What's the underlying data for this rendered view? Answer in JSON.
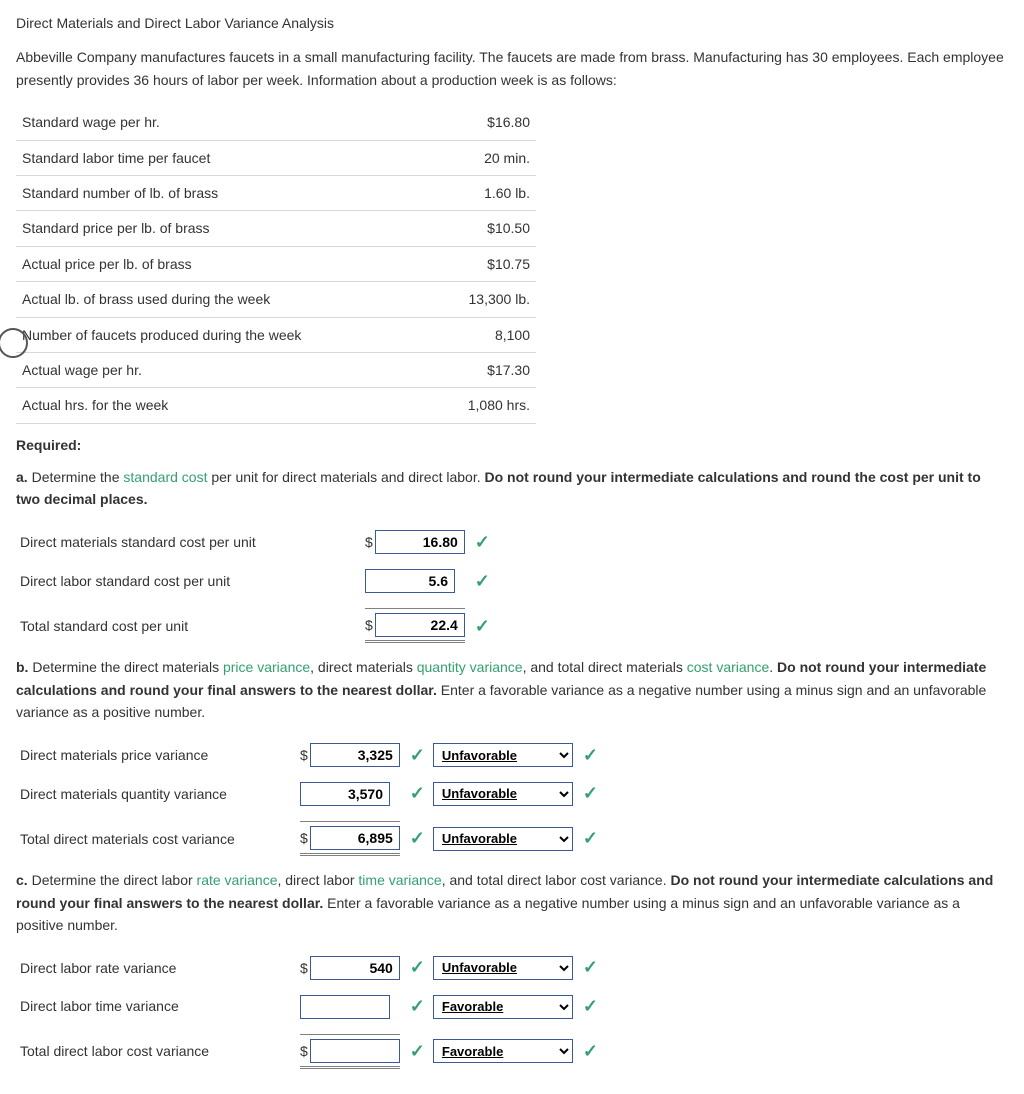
{
  "title": "Direct Materials and Direct Labor Variance Analysis",
  "intro": "Abbeville Company manufactures faucets in a small manufacturing facility. The faucets are made from brass. Manufacturing has 30 employees. Each employee presently provides 36 hours of labor per week. Information about a production week is as follows:",
  "info_rows": [
    {
      "label": "Standard wage per hr.",
      "value": "$16.80"
    },
    {
      "label": "Standard labor time per faucet",
      "value": "20 min."
    },
    {
      "label": "Standard number of lb. of brass",
      "value": "1.60 lb."
    },
    {
      "label": "Standard price per lb. of brass",
      "value": "$10.50"
    },
    {
      "label": "Actual price per lb. of brass",
      "value": "$10.75"
    },
    {
      "label": "Actual lb. of brass used during the week",
      "value": "13,300 lb."
    },
    {
      "label": "Number of faucets produced during the week",
      "value": "8,100"
    },
    {
      "label": "Actual wage per hr.",
      "value": "$17.30"
    },
    {
      "label": "Actual hrs. for the week",
      "value": "1,080 hrs."
    }
  ],
  "required_label": "Required:",
  "a": {
    "prefix": "a.",
    "t1": "  Determine the ",
    "link": "standard cost",
    "t2": " per unit for direct materials and direct labor. ",
    "bold": "Do not round your intermediate calculations and round the cost per unit to two decimal places.",
    "rows": [
      {
        "label": "Direct materials standard cost per unit",
        "dollar": "$",
        "value": "16.80"
      },
      {
        "label": "Direct labor standard cost per unit",
        "dollar": "",
        "value": "5.6"
      },
      {
        "label": "Total standard cost per unit",
        "dollar": "$",
        "value": "22.4"
      }
    ]
  },
  "b": {
    "prefix": "b.",
    "t1": "  Determine the direct materials ",
    "link1": "price variance",
    "t2": ", direct materials ",
    "link2": "quantity variance",
    "t3": ", and total direct materials ",
    "link3": "cost variance",
    "t4": ". ",
    "bold": "Do not round your intermediate calculations and round your final answers to the nearest dollar.",
    "t5": " Enter a favorable variance as a negative number using a minus sign and an unfavorable variance as a positive number.",
    "rows": [
      {
        "label": "Direct materials price variance",
        "dollar": "$",
        "value": "3,325",
        "select": "Unfavorable"
      },
      {
        "label": "Direct materials quantity variance",
        "dollar": "",
        "value": "3,570",
        "select": "Unfavorable"
      },
      {
        "label": "Total direct materials cost variance",
        "dollar": "$",
        "value": "6,895",
        "select": "Unfavorable"
      }
    ]
  },
  "c": {
    "prefix": "c.",
    "t1": "  Determine the direct labor ",
    "link1": "rate variance",
    "t2": ", direct labor ",
    "link2": "time variance",
    "t3": ", and total direct labor cost variance. ",
    "bold": "Do not round your intermediate calculations and round your final answers to the nearest dollar.",
    "t5": " Enter a favorable variance as a negative number using a minus sign and an unfavorable variance as a positive number.",
    "rows": [
      {
        "label": "Direct labor rate variance",
        "dollar": "$",
        "value": "540",
        "select": "Unfavorable"
      },
      {
        "label": "Direct labor time variance",
        "dollar": "",
        "value": "",
        "select": "Favorable"
      },
      {
        "label": "Total direct labor cost variance",
        "dollar": "$",
        "value": "",
        "select": "Favorable"
      }
    ]
  },
  "select_options": [
    "",
    "Unfavorable",
    "Favorable"
  ],
  "colors": {
    "green": "#33a06f",
    "border": "#3b5998",
    "text": "#333333"
  }
}
